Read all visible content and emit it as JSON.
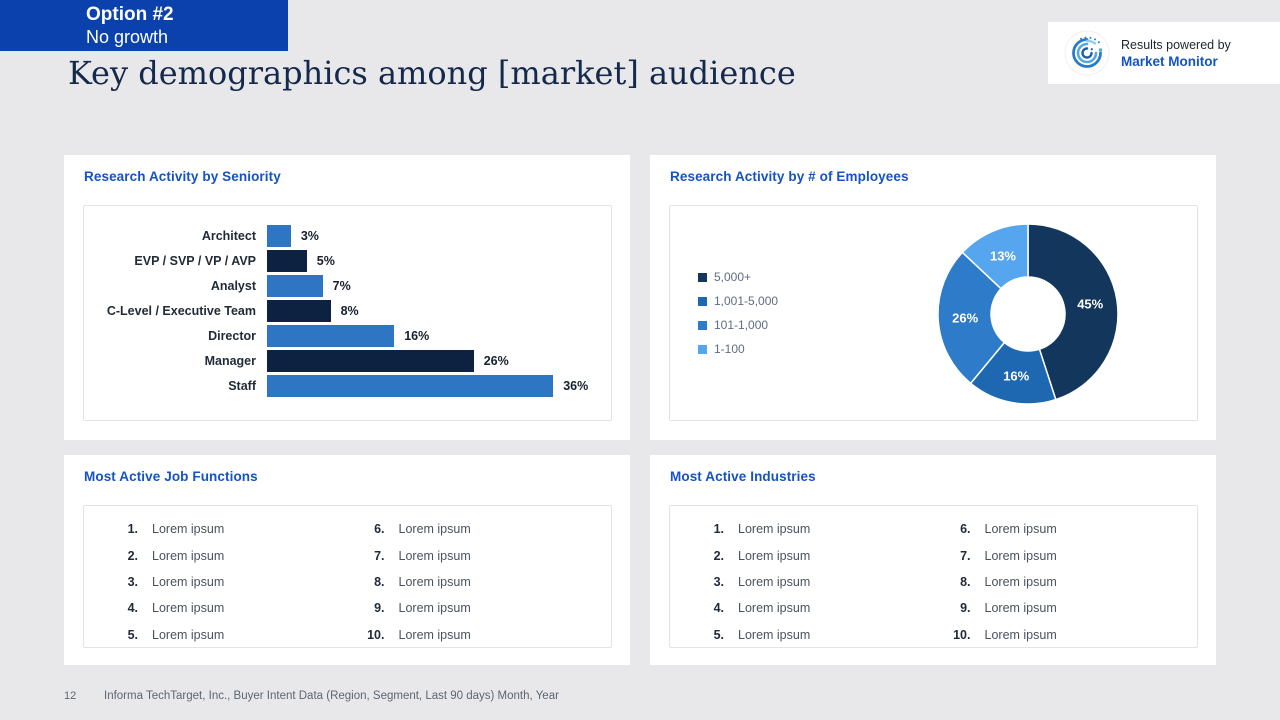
{
  "badge": {
    "line1": "Option #2",
    "line2": "No growth"
  },
  "header": {
    "title": "Key demographics among [market] audience",
    "powered_by": {
      "line1": "Results powered by",
      "line2": "Market Monitor"
    }
  },
  "icons": {
    "logo": "market-monitor-swirl-logo"
  },
  "colors": {
    "background": "#E8E8EA",
    "badge_background": "#0A41AD",
    "title_text": "#14294B",
    "card_title_accent": "#1453C5",
    "bar_blue": "#2E75C4",
    "bar_navy": "#0D2240",
    "panel_border": "#E2E3E6"
  },
  "chart_data": [
    {
      "id": "seniority",
      "type": "bar",
      "orientation": "horizontal",
      "title": "Research Activity by Seniority",
      "categories": [
        "Architect",
        "EVP / SVP / VP / AVP",
        "Analyst",
        "C-Level / Executive Team",
        "Director",
        "Manager",
        "Staff"
      ],
      "values": [
        3,
        5,
        7,
        8,
        16,
        26,
        36
      ],
      "value_labels": [
        "3%",
        "5%",
        "7%",
        "8%",
        "16%",
        "26%",
        "36%"
      ],
      "bar_colors": [
        "#2E75C4",
        "#0D2240",
        "#2E75C4",
        "#0D2240",
        "#2E75C4",
        "#0D2240",
        "#2E75C4"
      ],
      "xlim": [
        0,
        38
      ],
      "grid": false,
      "legend": false,
      "data_labels": "outside-end"
    },
    {
      "id": "employees",
      "type": "pie",
      "subtype": "donut",
      "title": "Research Activity by # of Employees",
      "labels": [
        "5,000+",
        "1,001-5,000",
        "101-1,000",
        "1-100"
      ],
      "values": [
        45,
        16,
        26,
        13
      ],
      "value_labels": [
        "45%",
        "16%",
        "26%",
        "13%"
      ],
      "colors": [
        "#13365C",
        "#1E68B2",
        "#2E7CC9",
        "#55A6EF"
      ],
      "legend_position": "left",
      "start_angle_deg": 0,
      "direction": "clockwise",
      "data_labels": "inside"
    }
  ],
  "lists": {
    "job_functions": {
      "title": "Most Active Job Functions",
      "items": [
        "Lorem ipsum",
        "Lorem ipsum",
        "Lorem ipsum",
        "Lorem ipsum",
        "Lorem ipsum",
        "Lorem ipsum",
        "Lorem ipsum",
        "Lorem ipsum",
        "Lorem ipsum",
        "Lorem ipsum"
      ]
    },
    "industries": {
      "title": "Most Active Industries",
      "items": [
        "Lorem ipsum",
        "Lorem ipsum",
        "Lorem ipsum",
        "Lorem ipsum",
        "Lorem ipsum",
        "Lorem ipsum",
        "Lorem ipsum",
        "Lorem ipsum",
        "Lorem ipsum",
        "Lorem ipsum"
      ]
    }
  },
  "footer": {
    "page_number": "12",
    "source": "Informa TechTarget, Inc., Buyer Intent Data (Region, Segment, Last 90 days) Month, Year"
  }
}
